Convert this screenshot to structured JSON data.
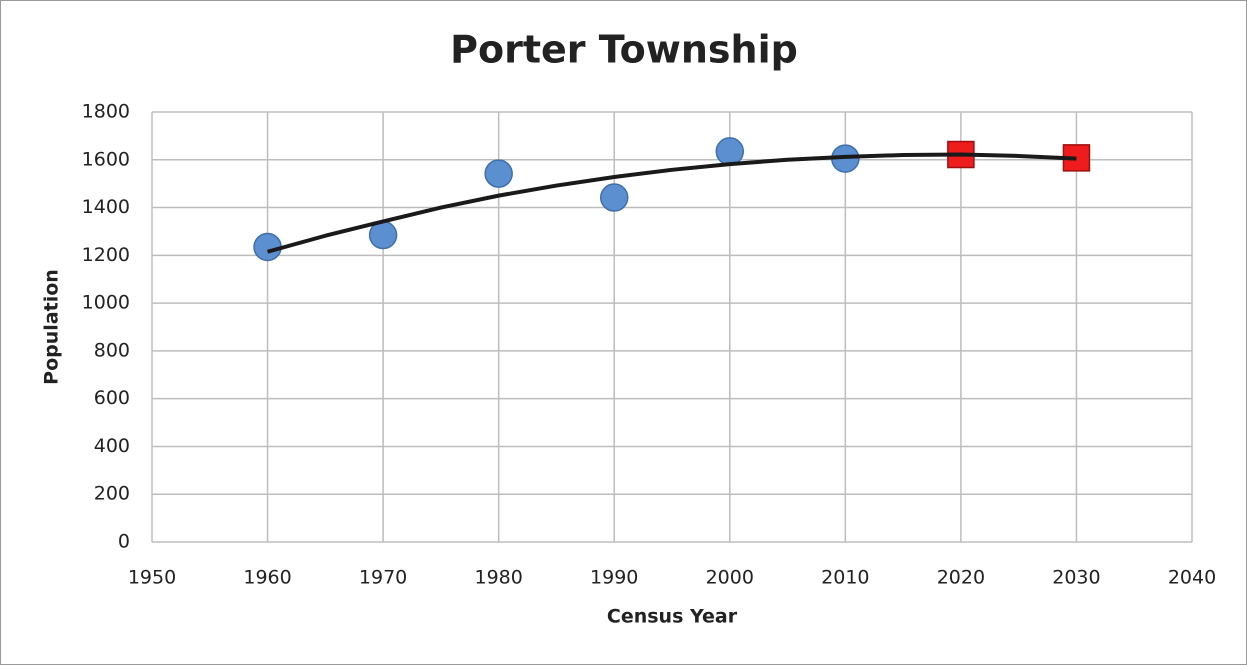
{
  "chart_data": {
    "type": "scatter",
    "title": "Porter Township",
    "xlabel": "Census Year",
    "ylabel": "Population",
    "xlim": [
      1950,
      2040
    ],
    "xticks": [
      1950,
      1960,
      1970,
      1980,
      1990,
      2000,
      2010,
      2020,
      2030,
      2040
    ],
    "ylim": [
      0,
      1800
    ],
    "yticks": [
      0,
      200,
      400,
      600,
      800,
      1000,
      1200,
      1400,
      1600,
      1800
    ],
    "grid": true,
    "series": [
      {
        "type": "scatter",
        "marker": "circle",
        "color": "#5b8fd0",
        "x": [
          1960,
          1970,
          1980,
          1990,
          2000,
          2010
        ],
        "values": [
          1235,
          1285,
          1542,
          1442,
          1635,
          1605
        ]
      },
      {
        "type": "scatter",
        "marker": "square",
        "color": "#ee1c1c",
        "x": [
          2020,
          2030
        ],
        "values": [
          1622,
          1608
        ]
      },
      {
        "type": "line",
        "color": "#1a1a1a",
        "x": [
          1960,
          1965,
          1970,
          1975,
          1980,
          1985,
          1990,
          1995,
          2000,
          2005,
          2010,
          2015,
          2020,
          2025,
          2030
        ],
        "values": [
          1215,
          1282,
          1342,
          1400,
          1450,
          1492,
          1528,
          1558,
          1582,
          1600,
          1612,
          1620,
          1622,
          1616,
          1605
        ]
      }
    ]
  }
}
